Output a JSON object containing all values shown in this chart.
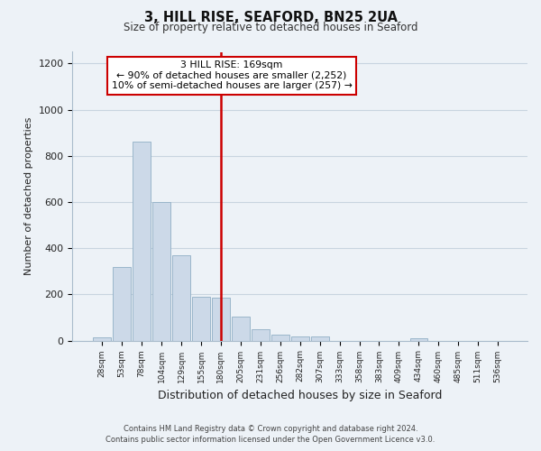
{
  "title": "3, HILL RISE, SEAFORD, BN25 2UA",
  "subtitle": "Size of property relative to detached houses in Seaford",
  "xlabel": "Distribution of detached houses by size in Seaford",
  "ylabel": "Number of detached properties",
  "bar_labels": [
    "28sqm",
    "53sqm",
    "78sqm",
    "104sqm",
    "129sqm",
    "155sqm",
    "180sqm",
    "205sqm",
    "231sqm",
    "256sqm",
    "282sqm",
    "307sqm",
    "333sqm",
    "358sqm",
    "383sqm",
    "409sqm",
    "434sqm",
    "460sqm",
    "485sqm",
    "511sqm",
    "536sqm"
  ],
  "bar_values": [
    12,
    320,
    860,
    600,
    370,
    190,
    185,
    105,
    48,
    25,
    18,
    18,
    0,
    0,
    0,
    0,
    10,
    0,
    0,
    0,
    0
  ],
  "bar_color": "#ccd9e8",
  "bar_edge_color": "#90afc5",
  "vline_x": 6.0,
  "vline_color": "#cc0000",
  "annotation_line1": "3 HILL RISE: 169sqm",
  "annotation_line2": "← 90% of detached houses are smaller (2,252)",
  "annotation_line3": "10% of semi-detached houses are larger (257) →",
  "annotation_box_facecolor": "#ffffff",
  "annotation_box_edgecolor": "#cc0000",
  "ylim": [
    0,
    1250
  ],
  "yticks": [
    0,
    200,
    400,
    600,
    800,
    1000,
    1200
  ],
  "grid_color": "#c8d4e0",
  "background_color": "#edf2f7",
  "footer_line1": "Contains HM Land Registry data © Crown copyright and database right 2024.",
  "footer_line2": "Contains public sector information licensed under the Open Government Licence v3.0."
}
